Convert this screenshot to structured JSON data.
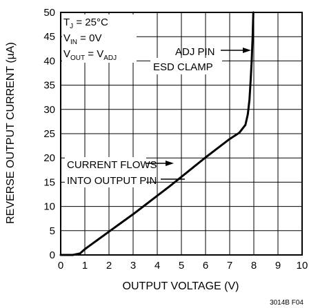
{
  "chart_data": {
    "type": "line",
    "xlabel": "OUTPUT VOLTAGE (V)",
    "ylabel": "REVERSE OUTPUT CURRENT (µA)",
    "xlim": [
      0,
      10
    ],
    "ylim": [
      0,
      50
    ],
    "xticks": [
      "0",
      "1",
      "2",
      "3",
      "4",
      "5",
      "6",
      "7",
      "8",
      "9",
      "10"
    ],
    "yticks": [
      "0",
      "5",
      "10",
      "15",
      "20",
      "25",
      "30",
      "35",
      "40",
      "45",
      "50"
    ],
    "grid": true,
    "series": [
      {
        "x": [
          0,
          0.5,
          0.8,
          1.0,
          1.5,
          2.0,
          2.5,
          3.0,
          3.5,
          4.0,
          4.5,
          5.0,
          5.5,
          6.0,
          6.5,
          7.0,
          7.4,
          7.65,
          7.75,
          7.82,
          7.87,
          7.91,
          7.95,
          7.98
        ],
        "y": [
          0,
          0,
          0.3,
          1.2,
          3.0,
          4.8,
          6.6,
          8.4,
          10.3,
          12.2,
          14.1,
          16.1,
          18.1,
          20.1,
          22.0,
          23.9,
          25.2,
          26.8,
          29.0,
          32.0,
          36.0,
          40.0,
          45.0,
          50.0
        ]
      }
    ],
    "annotations": {
      "conditions": {
        "tj_main": "T",
        "tj_sub": "J",
        "tj_rest": " = 25°C",
        "vin_main": "V",
        "vin_sub": "IN",
        "vin_rest": " = 0V",
        "vout_main": "V",
        "vout_sub": "OUT",
        "vout_mid": " = V",
        "vout_sub2": "ADJ"
      },
      "adj_pin_line1": "ADJ PIN",
      "adj_pin_line2": "ESD CLAMP",
      "current_line1": "CURRENT FLOWS",
      "current_line2": "INTO OUTPUT PIN"
    },
    "figure_id": "3014B F04"
  },
  "colors": {
    "line": "#000000",
    "grid": "#000000",
    "background": "#ffffff"
  }
}
